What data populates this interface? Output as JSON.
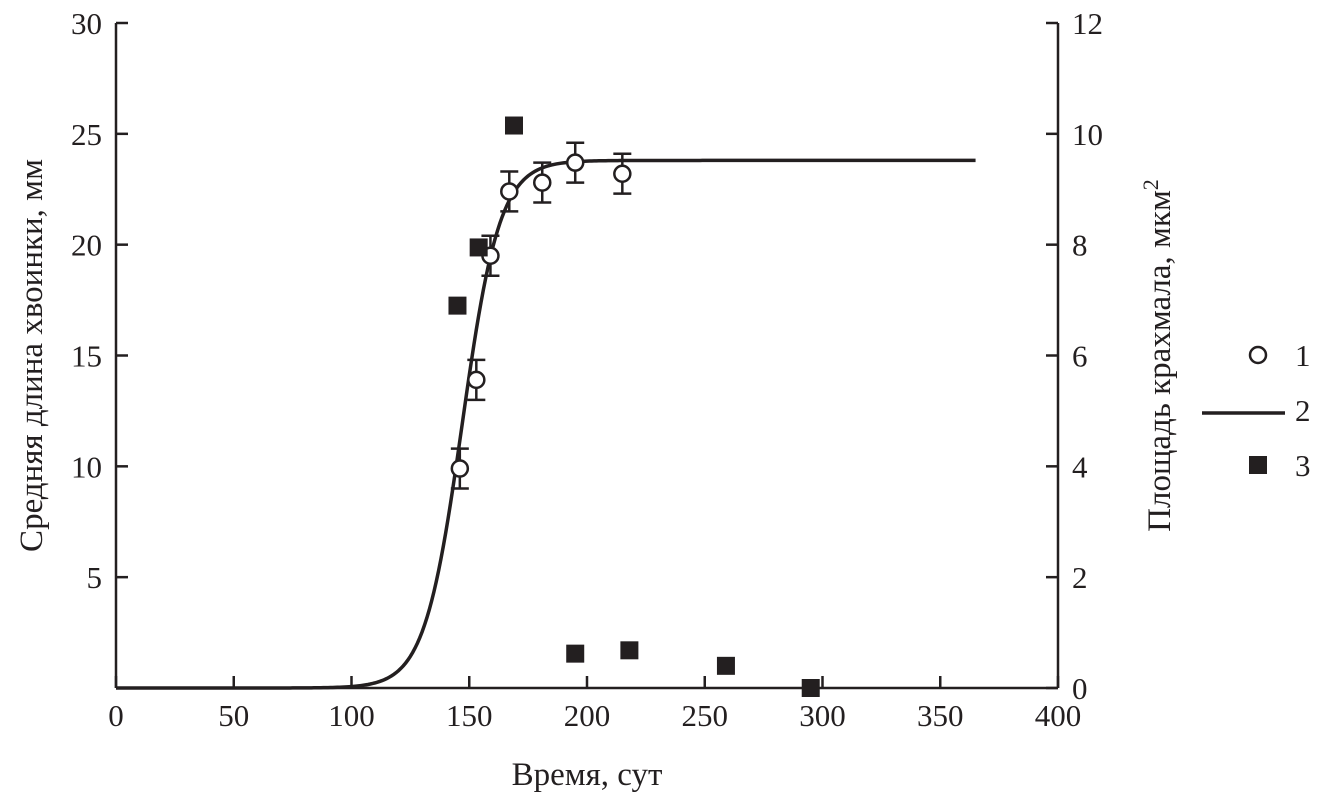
{
  "chart_data": {
    "type": "scatter",
    "title": "",
    "xlabel": "Время, сут",
    "ylabel_left": "Средняя длина хвоинки, мм",
    "ylabel_right": "Площадь крахмала, мкм",
    "ylabel_right_superscript": "2",
    "xlim": [
      0,
      400
    ],
    "ylim_left": [
      0,
      30
    ],
    "ylim_right": [
      0,
      12
    ],
    "x_ticks": [
      0,
      50,
      100,
      150,
      200,
      250,
      300,
      350,
      400
    ],
    "y_left_ticks": [
      5,
      10,
      15,
      20,
      25,
      30
    ],
    "y_right_ticks": [
      0,
      2,
      4,
      6,
      8,
      10,
      12
    ],
    "x_tick_labels": [
      "0",
      "50",
      "100",
      "150",
      "200",
      "250",
      "300",
      "350",
      "400"
    ],
    "y_left_tick_labels": [
      "5",
      "10",
      "15",
      "20",
      "25",
      "30"
    ],
    "y_right_tick_labels": [
      "0",
      "2",
      "4",
      "6",
      "8",
      "10",
      "12"
    ],
    "grid": false,
    "legend_position": "right",
    "series": [
      {
        "name": "1",
        "kind": "points-with-errorbars",
        "axis": "left",
        "marker": "open-circle",
        "x": [
          146,
          153,
          159,
          167,
          181,
          195,
          215
        ],
        "y": [
          9.9,
          13.9,
          19.5,
          22.4,
          22.8,
          23.7,
          23.2
        ],
        "err": [
          0.9,
          0.9,
          0.9,
          0.9,
          0.9,
          0.9,
          0.9
        ]
      },
      {
        "name": "2",
        "kind": "logistic-fit-line",
        "axis": "left",
        "asymptote": 23.8,
        "midpoint": 147,
        "rate": 0.125,
        "x_start": 0,
        "x_end": 365
      },
      {
        "name": "3",
        "kind": "points",
        "axis": "right",
        "marker": "filled-square",
        "x": [
          145,
          154,
          169,
          195,
          218,
          259,
          295
        ],
        "y": [
          6.9,
          7.95,
          10.15,
          0.62,
          0.68,
          0.4,
          0.0
        ]
      }
    ],
    "legend": [
      {
        "label": "1",
        "marker": "open-circle"
      },
      {
        "label": "2",
        "marker": "line"
      },
      {
        "label": "3",
        "marker": "filled-square"
      }
    ]
  }
}
